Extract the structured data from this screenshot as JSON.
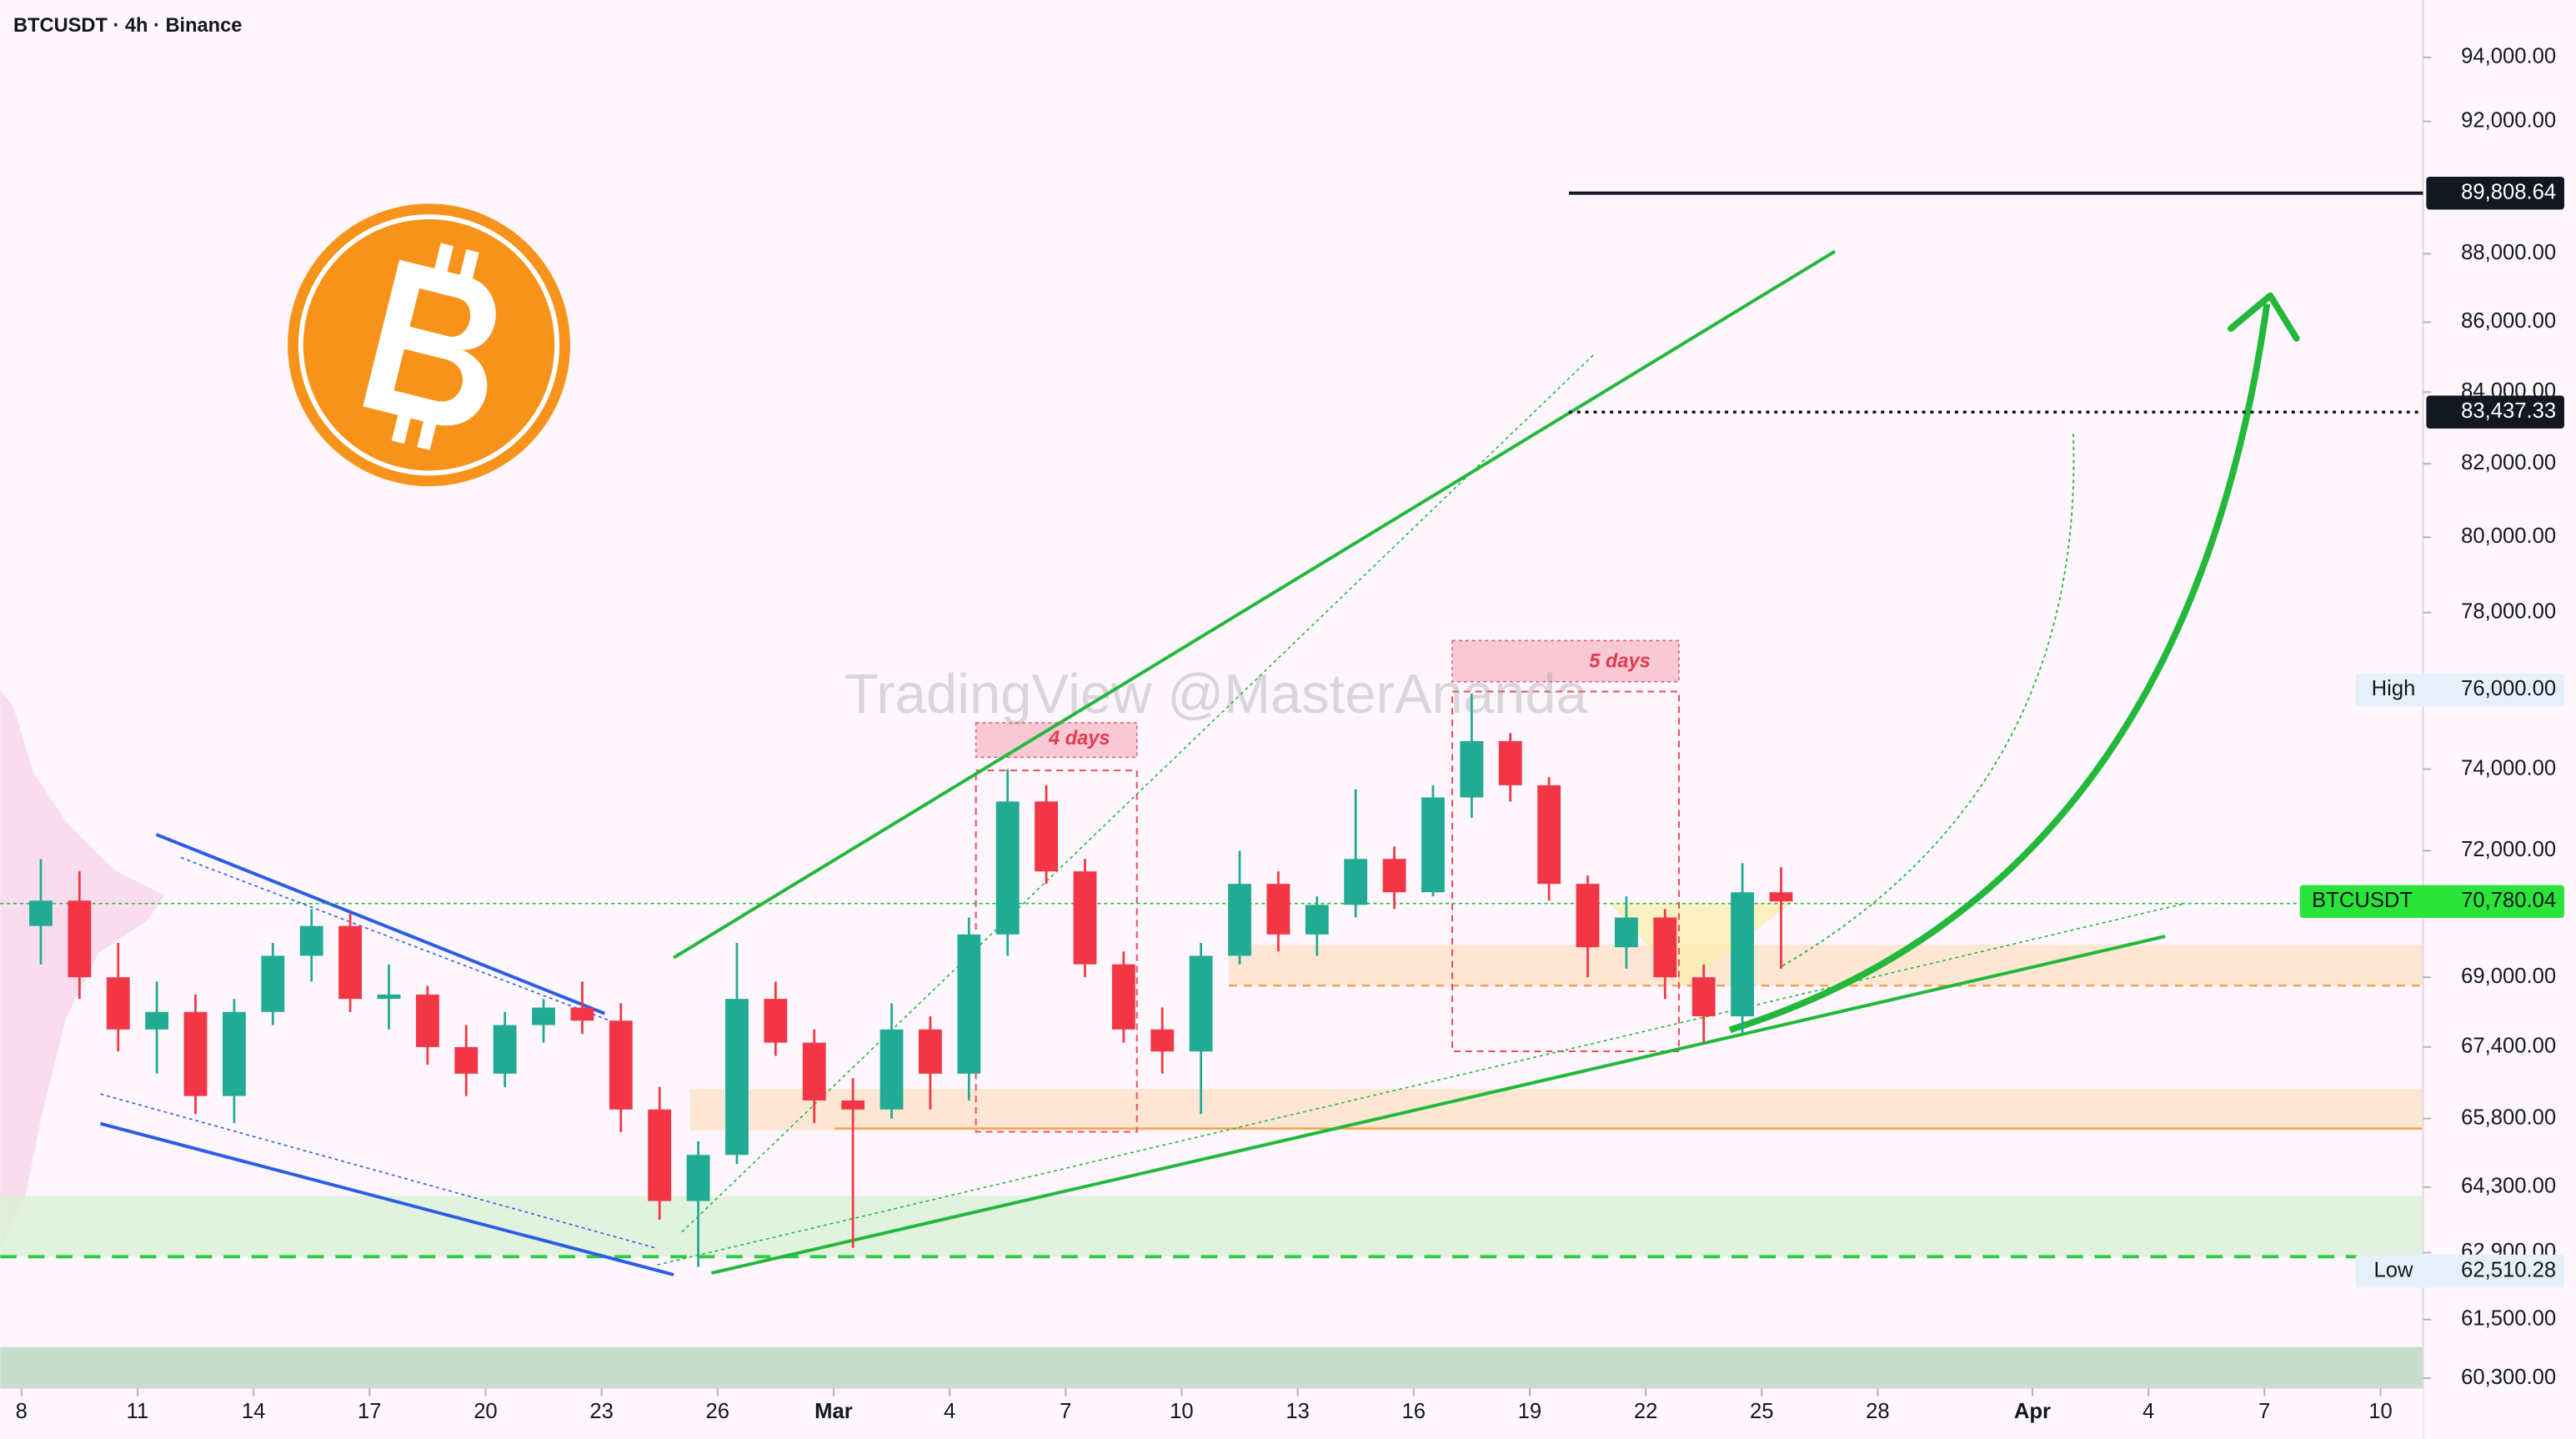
{
  "chart_data": {
    "type": "candlestick",
    "title": "BTCUSDT · 4h · Binance",
    "watermark": "TradingView @MasterAnanda",
    "log_scale": true,
    "ylim": [
      60100,
      95834
    ],
    "yticks": [
      {
        "value": 94000,
        "label": "94,000.00"
      },
      {
        "value": 92000,
        "label": "92,000.00"
      },
      {
        "value": 88000,
        "label": "88,000.00"
      },
      {
        "value": 86000,
        "label": "86,000.00"
      },
      {
        "value": 84000,
        "label": "84,000.00"
      },
      {
        "value": 82000,
        "label": "82,000.00"
      },
      {
        "value": 80000,
        "label": "80,000.00"
      },
      {
        "value": 78000,
        "label": "78,000.00"
      },
      {
        "value": 74000,
        "label": "74,000.00"
      },
      {
        "value": 72000,
        "label": "72,000.00"
      },
      {
        "value": 69000,
        "label": "69,000.00"
      },
      {
        "value": 67400,
        "label": "67,400.00"
      },
      {
        "value": 65800,
        "label": "65,800.00"
      },
      {
        "value": 64300,
        "label": "64,300.00"
      },
      {
        "value": 62900,
        "label": "62,900.00"
      },
      {
        "value": 61500,
        "label": "61,500.00"
      },
      {
        "value": 60300,
        "label": "60,300.00"
      }
    ],
    "xlim": [
      38.45,
      101.1
    ],
    "xticks": [
      {
        "value": 39,
        "label": "8"
      },
      {
        "value": 42,
        "label": "11"
      },
      {
        "value": 45,
        "label": "14"
      },
      {
        "value": 48,
        "label": "17"
      },
      {
        "value": 51,
        "label": "20"
      },
      {
        "value": 54,
        "label": "23"
      },
      {
        "value": 57,
        "label": "26"
      },
      {
        "value": 60,
        "label": "Mar"
      },
      {
        "value": 63,
        "label": "4"
      },
      {
        "value": 66,
        "label": "7"
      },
      {
        "value": 69,
        "label": "10"
      },
      {
        "value": 72,
        "label": "13"
      },
      {
        "value": 75,
        "label": "16"
      },
      {
        "value": 78,
        "label": "19"
      },
      {
        "value": 81,
        "label": "22"
      },
      {
        "value": 84,
        "label": "25"
      },
      {
        "value": 87,
        "label": "28"
      },
      {
        "value": 91,
        "label": "Apr"
      },
      {
        "value": 94,
        "label": "4"
      },
      {
        "value": 97,
        "label": "7"
      },
      {
        "value": 100,
        "label": "10"
      }
    ],
    "series": [
      {
        "name": "BTCUSDT",
        "color_up": "#22ab94",
        "color_down": "#f23645",
        "x": [
          39,
          40,
          41,
          42,
          43,
          44,
          45,
          46,
          47,
          48,
          49,
          50,
          51,
          52,
          53,
          54,
          55,
          56,
          57,
          58,
          59,
          60,
          61,
          62,
          63,
          64,
          65,
          66,
          67,
          68,
          69,
          70,
          71,
          72,
          73,
          74,
          75,
          76,
          77,
          78,
          79,
          80,
          81,
          82,
          83,
          84
        ],
        "open": [
          70200,
          70800,
          69000,
          67800,
          68200,
          66300,
          68200,
          69500,
          70200,
          68500,
          68600,
          67400,
          66800,
          67900,
          68300,
          68000,
          66000,
          64000,
          65000,
          68500,
          67500,
          66200,
          66000,
          67800,
          66800,
          70000,
          73200,
          71500,
          69300,
          67800,
          67300,
          69500,
          71200,
          70000,
          70700,
          71800,
          71000,
          73300,
          74700,
          73600,
          71200,
          69700,
          70400,
          69000,
          68100,
          71000
        ],
        "high": [
          71800,
          71500,
          69800,
          68900,
          68600,
          68500,
          69800,
          70600,
          70500,
          69300,
          68800,
          67900,
          68200,
          68500,
          68900,
          68400,
          66500,
          65300,
          69800,
          68900,
          67800,
          66700,
          68400,
          68100,
          70400,
          74000,
          73600,
          71800,
          69600,
          68300,
          69800,
          72000,
          71500,
          70900,
          73500,
          72100,
          73600,
          75900,
          74900,
          73800,
          71400,
          70900,
          70600,
          69300,
          71700,
          71600
        ],
        "low": [
          69300,
          68500,
          67300,
          66800,
          65900,
          65700,
          67900,
          68900,
          68200,
          67800,
          67000,
          66300,
          66500,
          67500,
          67700,
          65500,
          63600,
          62600,
          64800,
          67200,
          65700,
          63000,
          65800,
          66000,
          66200,
          69500,
          71200,
          69000,
          67500,
          66800,
          65900,
          69300,
          69600,
          69500,
          70400,
          70600,
          70900,
          72800,
          73200,
          70800,
          69000,
          69200,
          68500,
          67500,
          67700,
          69200
        ],
        "close": [
          70800,
          69000,
          67800,
          68200,
          66300,
          68200,
          69500,
          70200,
          68500,
          68600,
          67400,
          66800,
          67900,
          68300,
          68000,
          66000,
          64000,
          65000,
          68500,
          67500,
          66200,
          66000,
          67800,
          66800,
          70000,
          73200,
          71500,
          69300,
          67800,
          67300,
          69500,
          71200,
          70000,
          70700,
          71800,
          71000,
          73300,
          74700,
          73600,
          71200,
          69700,
          70400,
          69000,
          68100,
          71000,
          70780.04
        ]
      }
    ],
    "last_price": {
      "value": 70780.04,
      "label": "70,780.04"
    },
    "price_lines": [
      {
        "value": 89808.64,
        "label": "89,808.64"
      },
      {
        "value": 83437.33,
        "label": "83,437.33"
      }
    ],
    "high": {
      "name": "High",
      "value": 76000,
      "label": "76,000.00"
    },
    "low": {
      "name": "Low",
      "value": 62510.28,
      "label": "62,510.28"
    },
    "annotations": [
      "4 days",
      "5 days"
    ]
  }
}
